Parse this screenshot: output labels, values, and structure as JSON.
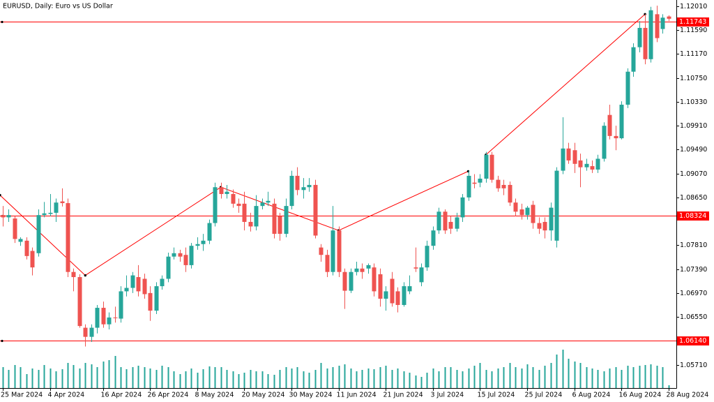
{
  "chart_data": {
    "type": "candlestick",
    "title": "EURUSD, Daily:  Euro vs US Dollar",
    "categories": [
      "25 Mar 2024",
      null,
      null,
      null,
      null,
      null,
      null,
      null,
      "4 Apr 2024",
      null,
      null,
      null,
      null,
      null,
      null,
      null,
      null,
      "16 Apr 2024",
      null,
      null,
      null,
      null,
      null,
      null,
      null,
      "26 Apr 2024",
      null,
      null,
      null,
      null,
      null,
      null,
      null,
      "8 May 2024",
      null,
      null,
      null,
      null,
      null,
      null,
      null,
      "20 May 2024",
      null,
      null,
      null,
      null,
      null,
      null,
      null,
      "30 May 2024",
      null,
      null,
      null,
      null,
      null,
      null,
      null,
      "11 Jun 2024",
      null,
      null,
      null,
      null,
      null,
      null,
      null,
      "21 Jun 2024",
      null,
      null,
      null,
      null,
      null,
      null,
      null,
      "3 Jul 2024",
      null,
      null,
      null,
      null,
      null,
      null,
      null,
      "15 Jul 2024",
      null,
      null,
      null,
      null,
      null,
      null,
      null,
      "25 Jul 2024",
      null,
      null,
      null,
      null,
      null,
      null,
      null,
      "6 Aug 2024",
      null,
      null,
      null,
      null,
      null,
      null,
      null,
      "16 Aug 2024",
      null,
      null,
      null,
      null,
      null,
      null,
      null,
      "28 Aug 2024"
    ],
    "open": [
      1.0834,
      1.083,
      1.0828,
      1.0787,
      1.0789,
      1.0771,
      1.0767,
      1.0834,
      1.0836,
      1.0838,
      1.0858,
      1.0855,
      1.0734,
      1.0725,
      1.0636,
      1.062,
      1.0636,
      1.0671,
      1.0642,
      1.0654,
      1.0652,
      1.07,
      1.0706,
      1.0725,
      1.0722,
      1.0697,
      1.0666,
      1.0709,
      1.0722,
      1.0761,
      1.0767,
      1.0764,
      1.0746,
      1.078,
      1.0783,
      1.0789,
      1.082,
      1.0883,
      1.0871,
      1.0871,
      1.0854,
      1.0854,
      1.0822,
      1.0814,
      1.085,
      1.0856,
      1.0854,
      1.0832,
      1.0801,
      1.085,
      1.0903,
      1.0878,
      1.0883,
      1.0887,
      1.0777,
      1.0764,
      1.0734,
      1.0807,
      1.0734,
      1.0701,
      1.0734,
      1.074,
      1.074,
      1.0742,
      1.073,
      1.0687,
      1.0722,
      1.07,
      1.0676,
      1.07,
      1.0742,
      1.0716,
      1.0742,
      1.078,
      1.0807,
      1.084,
      1.0822,
      1.081,
      1.083,
      1.0865,
      1.0891,
      1.0891,
      1.0898,
      1.094,
      1.0896,
      1.0887,
      1.0887,
      1.0856,
      1.0844,
      1.0834,
      1.0852,
      1.082,
      1.0822,
      1.0807,
      1.0789,
      1.0912,
      1.0951,
      1.0948,
      1.093,
      1.0918,
      1.092,
      1.0914,
      1.0933,
      1.101,
      1.0973,
      1.0969,
      1.1028,
      1.1086,
      1.1129,
      1.1163,
      1.1108,
      1.1187,
      1.1161,
      1.1183
    ],
    "high": [
      1.085,
      1.0844,
      1.0832,
      1.0795,
      1.0795,
      1.0777,
      1.0844,
      1.0857,
      1.0871,
      1.0863,
      1.0881,
      1.0863,
      1.074,
      1.073,
      1.0642,
      1.0642,
      1.0676,
      1.0682,
      1.0663,
      1.0673,
      1.0709,
      1.0728,
      1.0734,
      1.0746,
      1.0731,
      1.0709,
      1.0716,
      1.0728,
      1.0768,
      1.0777,
      1.0773,
      1.0777,
      1.0785,
      1.0795,
      1.0801,
      1.0826,
      1.0891,
      1.0891,
      1.0887,
      1.0879,
      1.0863,
      1.0875,
      1.0838,
      1.0869,
      1.0863,
      1.0875,
      1.0863,
      1.0838,
      1.0863,
      1.0912,
      1.0918,
      1.0899,
      1.0899,
      1.0896,
      1.0783,
      1.0773,
      1.085,
      1.0814,
      1.074,
      1.074,
      1.0752,
      1.0749,
      1.0749,
      1.0749,
      1.074,
      1.0709,
      1.0734,
      1.0707,
      1.0716,
      1.0728,
      1.0777,
      1.0749,
      1.0789,
      1.0814,
      1.0847,
      1.0844,
      1.0832,
      1.0838,
      1.0871,
      1.0912,
      1.0906,
      1.0906,
      1.0945,
      1.0945,
      1.0903,
      1.0896,
      1.0893,
      1.0863,
      1.0854,
      1.085,
      1.0859,
      1.083,
      1.083,
      1.0856,
      1.0918,
      1.1006,
      1.0961,
      1.0961,
      1.0942,
      1.0933,
      1.093,
      1.094,
      1.0997,
      1.1028,
      1.0991,
      1.1034,
      1.1092,
      1.1136,
      1.1175,
      1.1187,
      1.12,
      1.1202,
      1.1187,
      1.1185
    ],
    "low": [
      1.0814,
      1.0822,
      1.0785,
      1.078,
      1.0756,
      1.0728,
      1.0761,
      1.083,
      1.0832,
      1.0822,
      1.0849,
      1.0725,
      1.07,
      1.0636,
      1.0603,
      1.0611,
      1.0626,
      1.0636,
      1.0633,
      1.0645,
      1.0645,
      1.0691,
      1.0697,
      1.0691,
      1.0687,
      1.0648,
      1.066,
      1.0703,
      1.0716,
      1.0756,
      1.0752,
      1.0734,
      1.074,
      1.0773,
      1.0771,
      1.0783,
      1.0814,
      1.0863,
      1.0863,
      1.0847,
      1.0838,
      1.0807,
      1.0805,
      1.0807,
      1.0844,
      1.085,
      1.0793,
      1.0789,
      1.0795,
      1.0844,
      1.0869,
      1.0863,
      1.0875,
      1.0793,
      1.0752,
      1.0725,
      1.0728,
      1.0725,
      1.0669,
      1.0697,
      1.0728,
      1.0722,
      1.0731,
      1.0691,
      1.0673,
      1.0666,
      1.0673,
      1.0663,
      1.0673,
      1.0695,
      1.0734,
      1.0709,
      1.0736,
      1.0773,
      1.0801,
      1.0801,
      1.0801,
      1.0805,
      1.0822,
      1.0859,
      1.0881,
      1.0883,
      1.0891,
      1.0891,
      1.0875,
      1.0869,
      1.085,
      1.0832,
      1.0826,
      1.0826,
      1.081,
      1.0801,
      1.0793,
      1.0789,
      1.0777,
      1.0906,
      1.0924,
      1.0908,
      1.0883,
      1.0912,
      1.0908,
      1.0908,
      1.0928,
      1.0967,
      1.0948,
      1.0967,
      1.1022,
      1.1077,
      1.112,
      1.1099,
      1.1102,
      1.1138,
      1.1153,
      1.1175
    ],
    "close": [
      1.083,
      1.0834,
      1.0792,
      1.0792,
      1.0762,
      1.0742,
      1.0834,
      1.0837,
      1.0838,
      1.0856,
      1.0855,
      1.0734,
      1.0725,
      1.0639,
      1.062,
      1.0636,
      1.0671,
      1.0642,
      1.0654,
      1.0653,
      1.07,
      1.0706,
      1.0728,
      1.07,
      1.0695,
      1.0666,
      1.0709,
      1.0722,
      1.0761,
      1.0767,
      1.0761,
      1.0746,
      1.078,
      1.0783,
      1.0789,
      1.082,
      1.0883,
      1.0871,
      1.0875,
      1.0854,
      1.085,
      1.0822,
      1.0814,
      1.085,
      1.0856,
      1.0859,
      1.0801,
      1.0801,
      1.085,
      1.0903,
      1.0878,
      1.0883,
      1.0887,
      1.0798,
      1.0764,
      1.0734,
      1.0807,
      1.0734,
      1.0701,
      1.0734,
      1.074,
      1.0734,
      1.0746,
      1.07,
      1.0687,
      1.07,
      1.0679,
      1.0676,
      1.0709,
      1.0709,
      1.074,
      1.0742,
      1.078,
      1.0807,
      1.084,
      1.0807,
      1.081,
      1.083,
      1.0865,
      1.0903,
      1.0889,
      1.0898,
      1.094,
      1.0896,
      1.0881,
      1.0881,
      1.0856,
      1.084,
      1.0834,
      1.0847,
      1.082,
      1.081,
      1.0807,
      1.0847,
      1.0912,
      1.0951,
      1.093,
      1.0924,
      1.0918,
      1.0924,
      1.0914,
      1.0933,
      1.0991,
      1.0973,
      1.0969,
      1.1028,
      1.1086,
      1.1129,
      1.1163,
      1.1108,
      1.1194,
      1.1145,
      1.1181,
      1.1179
    ],
    "volume": [
      37500,
      32500,
      41250,
      37500,
      25000,
      35000,
      32500,
      41250,
      35000,
      30000,
      33750,
      45000,
      41250,
      35000,
      45000,
      42500,
      37500,
      47500,
      50000,
      57500,
      37500,
      33750,
      37500,
      40000,
      37500,
      35000,
      32500,
      40000,
      37500,
      30000,
      25000,
      30000,
      35000,
      27500,
      33750,
      38750,
      37500,
      37500,
      32500,
      30000,
      25000,
      27500,
      32500,
      30000,
      30000,
      25000,
      23750,
      32500,
      37500,
      35000,
      37500,
      30000,
      27500,
      32500,
      45000,
      35000,
      37500,
      40000,
      42500,
      35000,
      30000,
      32500,
      35000,
      33750,
      37500,
      40000,
      32500,
      35000,
      30000,
      27500,
      22500,
      20000,
      27500,
      35000,
      30000,
      37500,
      37500,
      32500,
      30000,
      35000,
      40000,
      45000,
      32500,
      30000,
      35000,
      37500,
      45000,
      37500,
      35000,
      42500,
      37500,
      32500,
      40000,
      45000,
      60000,
      68750,
      52500,
      47500,
      45000,
      37500,
      35000,
      32500,
      30000,
      35000,
      37500,
      32500,
      40000,
      37500,
      40000,
      41250,
      42500,
      40000,
      37500,
      5000
    ],
    "up_color": "#26a69a",
    "down_color": "#ef5350",
    "volume_color": "#26a69a",
    "ylim": [
      1.053,
      1.1212
    ],
    "yticks": [
      {
        "value": 1.1201,
        "label": "1.12010"
      },
      {
        "value": 1.1159,
        "label": "1.11590"
      },
      {
        "value": 1.1117,
        "label": "1.11170"
      },
      {
        "value": 1.1075,
        "label": "1.10750"
      },
      {
        "value": 1.1033,
        "label": "1.10330"
      },
      {
        "value": 1.0991,
        "label": "1.09910"
      },
      {
        "value": 1.0949,
        "label": "1.09490"
      },
      {
        "value": 1.0907,
        "label": "1.09070"
      },
      {
        "value": 1.0865,
        "label": "1.08650"
      },
      {
        "value": 1.0781,
        "label": "1.07810"
      },
      {
        "value": 1.0739,
        "label": "1.07390"
      },
      {
        "value": 1.0697,
        "label": "1.06970"
      },
      {
        "value": 1.0655,
        "label": "1.06550"
      },
      {
        "value": 1.0571,
        "label": "1.05710"
      }
    ],
    "vlim": [
      0,
      100000
    ],
    "levels": [
      {
        "value": 1.11743,
        "label": "1.11743"
      },
      {
        "value": 1.08324,
        "label": "1.08324"
      },
      {
        "value": 1.0614,
        "label": "1.06140"
      }
    ],
    "level_color": "#ff0000",
    "trendlines": [
      {
        "x": [
          0,
          14,
          37,
          57,
          79
        ],
        "values": [
          1.0869,
          1.0728,
          1.0883,
          1.0807,
          1.0911
        ]
      },
      {
        "x": [
          82,
          109
        ],
        "values": [
          1.094,
          1.1187
        ]
      }
    ],
    "trendline_color": "#ff0000"
  }
}
